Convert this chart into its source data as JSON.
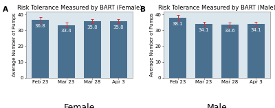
{
  "panel_A": {
    "title": "Risk Tolerance Measured by BART (Female)",
    "label": "A",
    "categories": [
      "Feb 23",
      "Mar 23",
      "Mar 28",
      "Apr 3"
    ],
    "values": [
      36.8,
      33.4,
      35.8,
      35.8
    ],
    "errors": [
      1.5,
      1.4,
      1.4,
      1.4
    ],
    "bar_color": "#4a7090",
    "error_color": "#cc3333",
    "ylabel": "Average Number of Pumps",
    "ylim": [
      0,
      42
    ],
    "yticks": [
      0,
      10,
      20,
      30,
      40
    ],
    "footer": "Female"
  },
  "panel_B": {
    "title": "Risk Tolerance Measured by BART (Male)",
    "label": "B",
    "categories": [
      "Feb 23",
      "Mar 23",
      "Mar 28",
      "Apr 3"
    ],
    "values": [
      38.1,
      34.1,
      33.6,
      34.1
    ],
    "errors": [
      1.8,
      1.4,
      1.5,
      1.4
    ],
    "bar_color": "#4a7090",
    "error_color": "#cc3333",
    "ylabel": "Average Number of Pumps",
    "ylim": [
      0,
      42
    ],
    "yticks": [
      0,
      10,
      20,
      30,
      40
    ],
    "footer": "Male"
  },
  "fig_background": "#ffffff",
  "plot_background": "#dce6ed",
  "bar_value_fontsize": 5.0,
  "title_fontsize": 6.0,
  "panel_label_fontsize": 7.5,
  "tick_fontsize": 5.0,
  "ylabel_fontsize": 5.0,
  "footer_fontsize": 9.0
}
